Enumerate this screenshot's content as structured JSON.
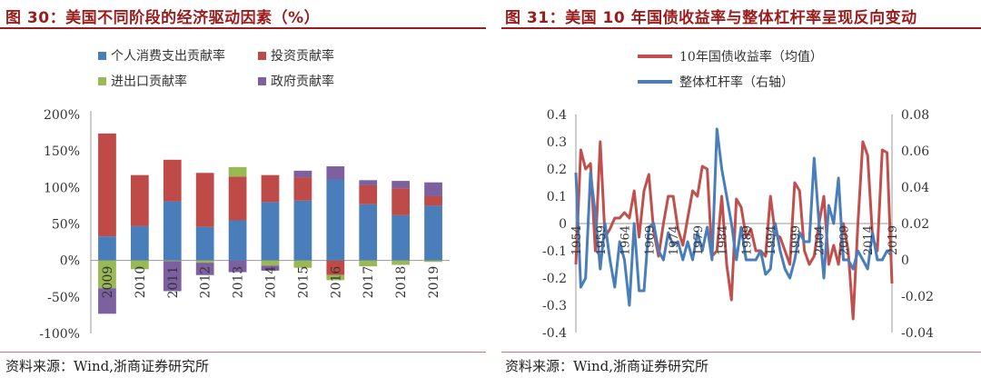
{
  "left": {
    "title": "图 30：美国不同阶段的经济驱动因素（%）",
    "source": "资料来源：Wind,浙商证券研究所",
    "chart_data": {
      "type": "bar",
      "stacked": true,
      "categories": [
        "2009",
        "2010",
        "2011",
        "2012",
        "2013",
        "2014",
        "2015",
        "2016",
        "2017",
        "2018",
        "2019"
      ],
      "y_ticks": [
        "200%",
        "150%",
        "100%",
        "50%",
        "0%",
        "-50%",
        "-100%"
      ],
      "ylim": [
        -100,
        200
      ],
      "legend_placement": "top",
      "series": [
        {
          "name": "个人消费支出贡献率",
          "color": "#4a7ebb",
          "values": [
            33,
            47,
            81,
            46,
            55,
            80,
            82,
            111,
            77,
            62,
            75
          ]
        },
        {
          "name": "投资贡献率",
          "color": "#be4b48",
          "values": [
            141,
            70,
            57,
            74,
            60,
            37,
            32,
            -20,
            26,
            37,
            13
          ]
        },
        {
          "name": "进出口贡献率",
          "color": "#98b954",
          "values": [
            -38,
            -12,
            -1,
            -3,
            13,
            -7,
            -10,
            -7,
            -8,
            -6,
            -2
          ]
        },
        {
          "name": "政府贡献率",
          "color": "#7d60a0",
          "values": [
            -35,
            0,
            -41,
            -17,
            -16,
            -7,
            9,
            18,
            7,
            10,
            19
          ]
        }
      ]
    }
  },
  "right": {
    "title": "图 31：美国 10 年国债收益率与整体杠杆率呈现反向变动",
    "source": "资料来源：Wind,浙商证券研究所",
    "chart_data": {
      "type": "line",
      "x_tick_labels": [
        "1954",
        "1959",
        "1964",
        "1969",
        "1974",
        "1979",
        "1984",
        "1989",
        "1994",
        "1999",
        "2004",
        "2009",
        "2014",
        "2019"
      ],
      "x_range": [
        1954,
        2019
      ],
      "y_left_ticks": [
        "0.4",
        "0.3",
        "0.2",
        "0.1",
        "0",
        "-0.1",
        "-0.2",
        "-0.3",
        "-0.4"
      ],
      "y_left_range": [
        -0.4,
        0.4
      ],
      "y_right_ticks": [
        "0.08",
        "0.06",
        "0.04",
        "0.02",
        "0",
        "-0.02",
        "-0.04"
      ],
      "y_right_range": [
        -0.04,
        0.08
      ],
      "legend_placement": "top",
      "series": [
        {
          "name": "10年国债收益率（均值）",
          "axis": "left",
          "color": "#c0504d",
          "x": [
            1954,
            1955,
            1956,
            1957,
            1958,
            1959,
            1960,
            1961,
            1962,
            1963,
            1964,
            1965,
            1966,
            1967,
            1968,
            1969,
            1970,
            1971,
            1972,
            1973,
            1974,
            1975,
            1976,
            1977,
            1978,
            1979,
            1980,
            1981,
            1982,
            1983,
            1984,
            1985,
            1986,
            1987,
            1988,
            1989,
            1990,
            1991,
            1992,
            1993,
            1994,
            1995,
            1996,
            1997,
            1998,
            1999,
            2000,
            2001,
            2002,
            2003,
            2004,
            2005,
            2006,
            2007,
            2008,
            2009,
            2010,
            2011,
            2012,
            2013,
            2014,
            2015,
            2016,
            2017,
            2018,
            2019
          ],
          "values": [
            -0.15,
            0.27,
            0.2,
            0.22,
            -0.1,
            0.3,
            -0.05,
            -0.02,
            0.02,
            0.02,
            0.04,
            0.02,
            0.12,
            -0.05,
            0.12,
            0.18,
            -0.03,
            -0.12,
            0.0,
            0.1,
            0.1,
            -0.02,
            -0.08,
            0.02,
            0.12,
            0.1,
            0.21,
            0.2,
            -0.12,
            -0.1,
            0.1,
            -0.15,
            -0.28,
            0.09,
            0.06,
            -0.05,
            -0.02,
            -0.1,
            -0.1,
            -0.12,
            0.1,
            -0.04,
            -0.05,
            -0.1,
            -0.15,
            0.15,
            0.12,
            -0.1,
            -0.15,
            -0.12,
            0.0,
            0.1,
            -0.15,
            -0.08,
            -0.15,
            0.0,
            -0.1,
            -0.35,
            0.0,
            0.3,
            0.25,
            -0.05,
            -0.1,
            0.27,
            0.26,
            -0.22
          ]
        },
        {
          "name": "整体杠杆率（右轴）",
          "axis": "right",
          "color": "#4a7ebb",
          "x": [
            1954,
            1955,
            1956,
            1957,
            1958,
            1959,
            1960,
            1961,
            1962,
            1963,
            1964,
            1965,
            1966,
            1967,
            1968,
            1969,
            1970,
            1971,
            1972,
            1973,
            1974,
            1975,
            1976,
            1977,
            1978,
            1979,
            1980,
            1981,
            1982,
            1983,
            1984,
            1985,
            1986,
            1987,
            1988,
            1989,
            1990,
            1991,
            1992,
            1993,
            1994,
            1995,
            1996,
            1997,
            1998,
            1999,
            2000,
            2001,
            2002,
            2003,
            2004,
            2005,
            2006,
            2007,
            2008,
            2009,
            2010,
            2011,
            2012,
            2013,
            2014,
            2015,
            2016,
            2017,
            2018,
            2019
          ],
          "values": [
            0.048,
            -0.015,
            -0.01,
            0.048,
            0.025,
            -0.005,
            0.02,
            0.0,
            -0.015,
            0.01,
            0.0,
            -0.025,
            0.02,
            -0.017,
            -0.017,
            0.018,
            0.02,
            0.005,
            0.0,
            0.015,
            0.008,
            0.01,
            0.0,
            0.01,
            0.0,
            0.015,
            0.005,
            0.018,
            0.0,
            0.072,
            0.05,
            0.035,
            0.02,
            0.0,
            0.018,
            0.0,
            0.0,
            0.0,
            0.005,
            -0.008,
            -0.005,
            0.02,
            0.005,
            -0.005,
            -0.01,
            0.0,
            0.015,
            0.01,
            0.01,
            0.056,
            0.02,
            -0.01,
            0.03,
            0.02,
            0.045,
            0.0,
            0.0,
            -0.005,
            0.005,
            0.0,
            -0.005,
            0.015,
            0.0,
            0.0,
            0.005,
            0.005
          ]
        }
      ]
    }
  }
}
